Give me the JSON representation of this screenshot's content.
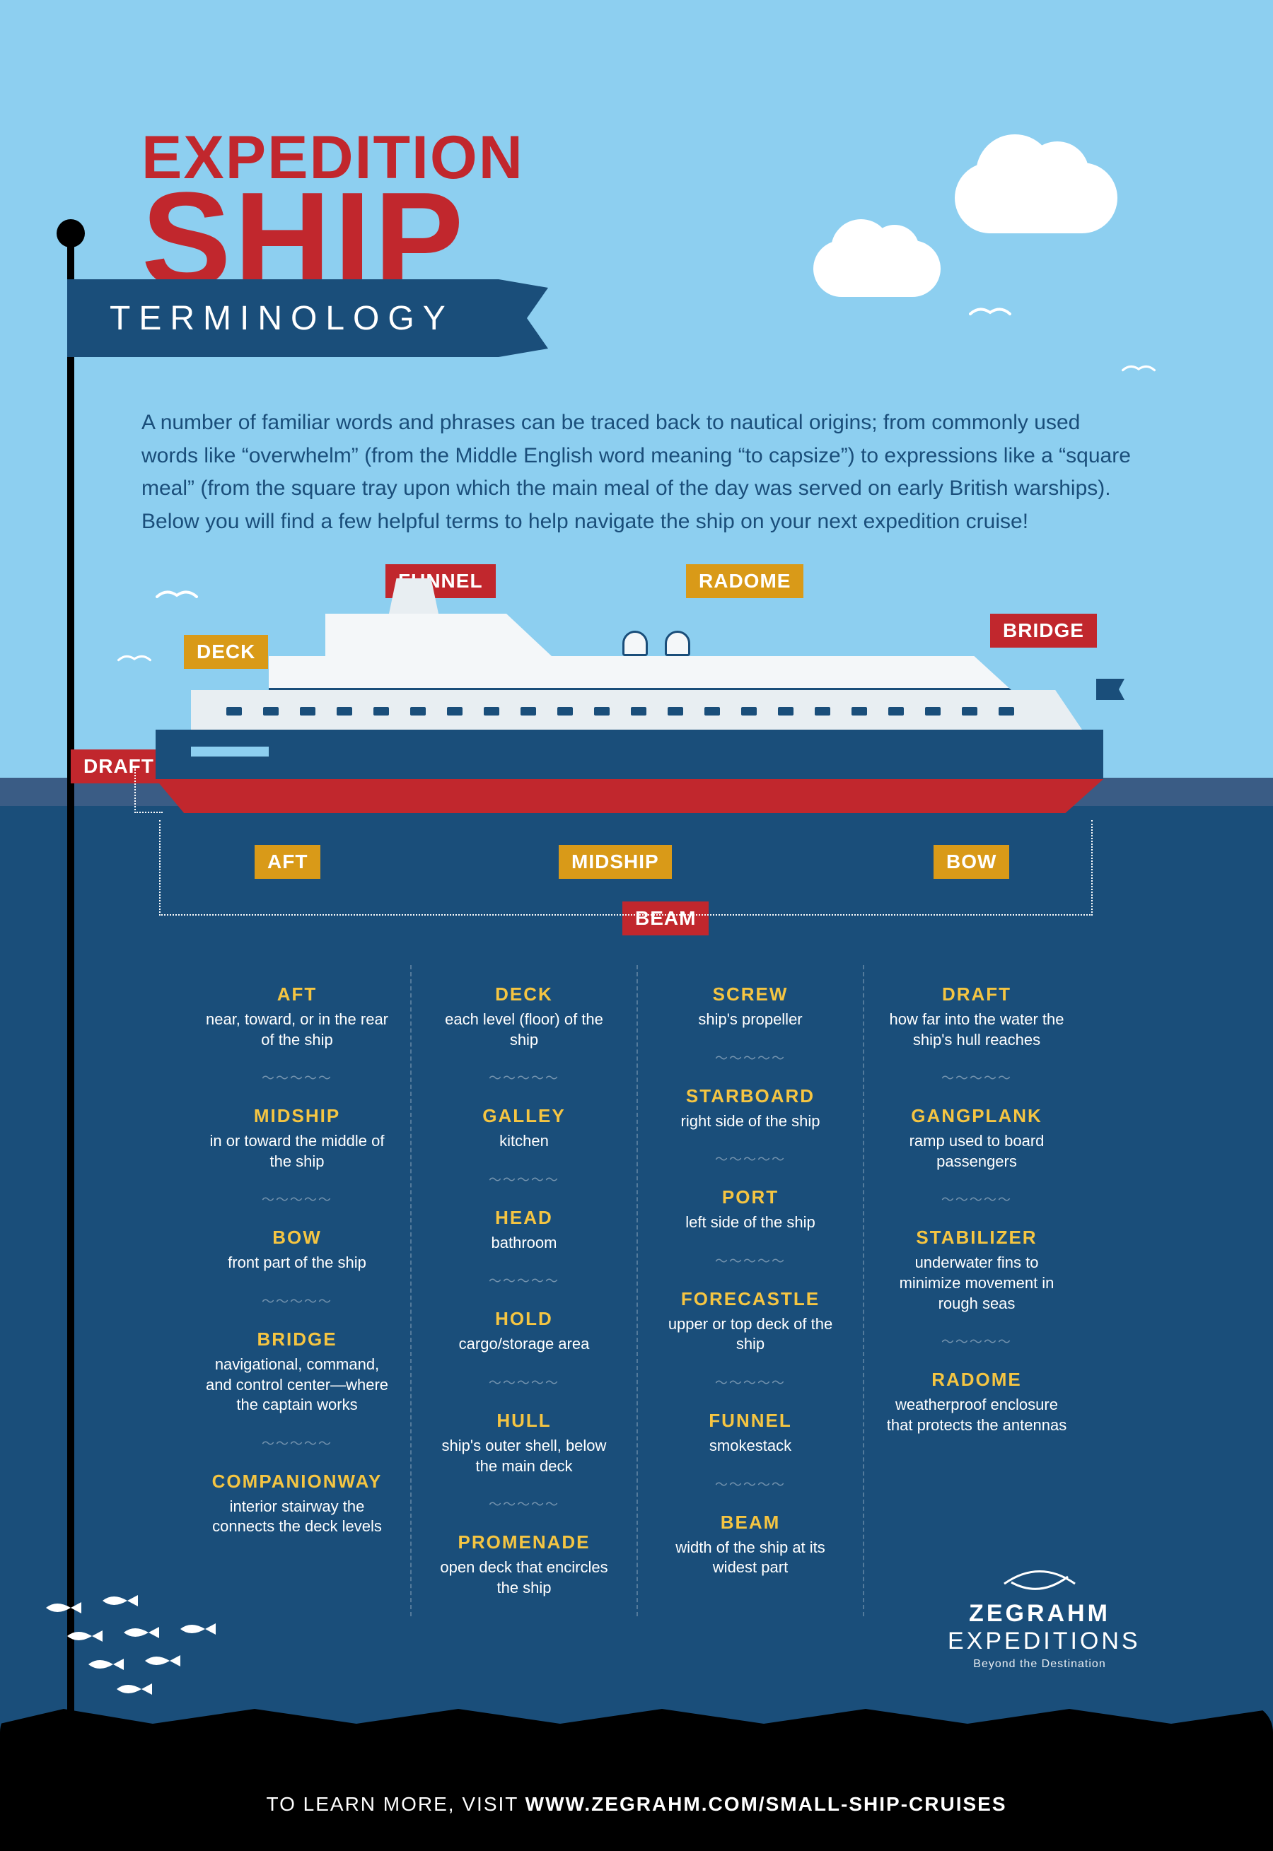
{
  "colors": {
    "sky": "#8dcff0",
    "waterline": "#3a5c85",
    "water": "#1a4e7a",
    "footer": "#000000",
    "red": "#c1272d",
    "gold": "#d99a18",
    "termHead": "#f5c542",
    "white": "#ffffff"
  },
  "title": {
    "line1": "EXPEDITION",
    "line2": "SHIP",
    "banner": "TERMINOLOGY"
  },
  "intro": "A number of familiar words and phrases can be traced back to nautical origins; from commonly used words like “overwhelm” (from the Middle English word meaning “to capsize”) to expressions like a “square meal” (from the square tray upon which the main meal of the day was served on early British warships). Below you will find a few helpful terms to help navigate the ship on your next expedition cruise!",
  "tags": {
    "funnel": "FUNNEL",
    "radome": "RADOME",
    "bridge": "BRIDGE",
    "deck": "DECK",
    "draft": "DRAFT",
    "aft": "AFT",
    "midship": "MIDSHIP",
    "bow": "BOW",
    "beam": "BEAM"
  },
  "glossary": {
    "col1": [
      {
        "term": "AFT",
        "def": "near, toward, or in the rear of the ship"
      },
      {
        "term": "MIDSHIP",
        "def": "in or toward the middle of the ship"
      },
      {
        "term": "BOW",
        "def": "front part of the ship"
      },
      {
        "term": "BRIDGE",
        "def": "navigational, command, and control center—where the captain works"
      },
      {
        "term": "COMPANIONWAY",
        "def": "interior stairway the connects the deck levels"
      }
    ],
    "col2": [
      {
        "term": "DECK",
        "def": "each level (floor) of the ship"
      },
      {
        "term": "GALLEY",
        "def": "kitchen"
      },
      {
        "term": "HEAD",
        "def": "bathroom"
      },
      {
        "term": "HOLD",
        "def": "cargo/storage area"
      },
      {
        "term": "HULL",
        "def": "ship's outer shell, below the main deck"
      },
      {
        "term": "PROMENADE",
        "def": "open deck that encircles the ship"
      }
    ],
    "col3": [
      {
        "term": "SCREW",
        "def": "ship's propeller"
      },
      {
        "term": "STARBOARD",
        "def": "right side of the ship"
      },
      {
        "term": "PORT",
        "def": "left side of the ship"
      },
      {
        "term": "FORECASTLE",
        "def": "upper or top deck of the ship"
      },
      {
        "term": "FUNNEL",
        "def": "smokestack"
      },
      {
        "term": "BEAM",
        "def": "width of the ship at its widest part"
      }
    ],
    "col4": [
      {
        "term": "DRAFT",
        "def": "how far into the water the ship's hull reaches"
      },
      {
        "term": "GANGPLANK",
        "def": "ramp used to board passengers"
      },
      {
        "term": "STABILIZER",
        "def": "underwater fins to minimize movement in rough seas"
      },
      {
        "term": "RADOME",
        "def": "weatherproof enclosure that protects the antennas"
      }
    ]
  },
  "brand": {
    "name1": "ZEGRAHM",
    "name2": "EXPEDITIONS",
    "tagline": "Beyond the Destination"
  },
  "footer": {
    "lead": "TO LEARN MORE, VISIT ",
    "url": "WWW.ZEGRAHM.COM/SMALL-SHIP-CRUISES"
  }
}
